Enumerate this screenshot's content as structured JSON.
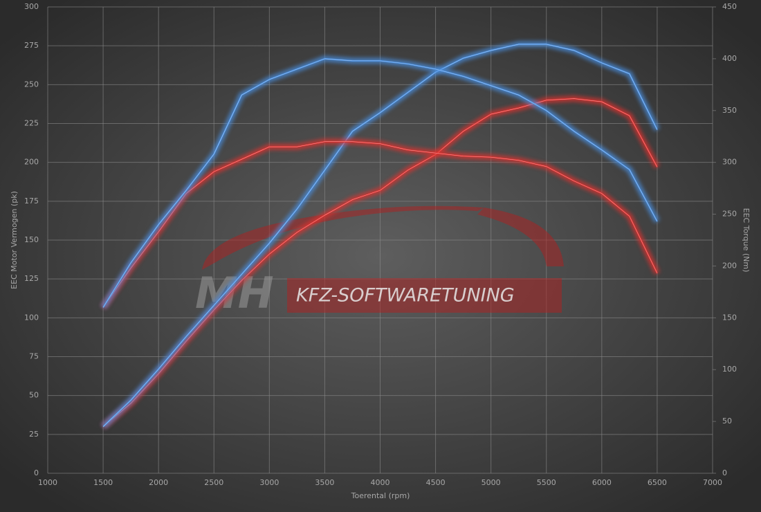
{
  "chart_data": {
    "type": "line",
    "xlabel": "Toerental (rpm)",
    "ylabel": "EEC Motor Vermogen (pk)",
    "y2label": "EEC Torque (Nm)",
    "watermark": {
      "left": "MH",
      "right": "KFZ-SOFTWARETUNING"
    },
    "x": [
      1500,
      1750,
      2000,
      2250,
      2500,
      2750,
      3000,
      3250,
      3500,
      3750,
      4000,
      4250,
      4500,
      4750,
      5000,
      5250,
      5500,
      5750,
      6000,
      6250,
      6500
    ],
    "series": [
      {
        "color": "#e0302e",
        "values": [
          30,
          45,
          64,
          85,
          105,
          124,
          141,
          155,
          166,
          176,
          182,
          195,
          205,
          220,
          231,
          235,
          240,
          241,
          239,
          230,
          197
        ]
      },
      {
        "color": "#4a90e2",
        "values": [
          30,
          47,
          67,
          88,
          108,
          128,
          148,
          170,
          195,
          220,
          232,
          245,
          258,
          267,
          272,
          276,
          276,
          272,
          264,
          257,
          221
        ]
      },
      {
        "color": "#e0302e",
        "axis": "y2",
        "values": [
          160,
          198,
          233,
          270,
          291,
          303,
          315,
          315,
          320,
          320,
          318,
          312,
          309,
          306,
          305,
          302,
          296,
          282,
          270,
          248,
          193
        ]
      },
      {
        "color": "#4a90e2",
        "axis": "y2",
        "values": [
          160,
          203,
          240,
          273,
          308,
          365,
          380,
          390,
          400,
          398,
          398,
          395,
          390,
          383,
          374,
          365,
          350,
          330,
          312,
          293,
          243
        ]
      }
    ],
    "xlim": [
      1000,
      7000
    ],
    "xticks": [
      1000,
      1500,
      2000,
      2500,
      3000,
      3500,
      4000,
      4500,
      5000,
      5500,
      6000,
      6500,
      7000
    ],
    "ylim": [
      0,
      300
    ],
    "yticks": [
      0,
      25,
      50,
      75,
      100,
      125,
      150,
      175,
      200,
      225,
      250,
      275,
      300
    ],
    "y2lim": [
      0,
      450
    ],
    "y2ticks": [
      0,
      50,
      100,
      150,
      200,
      250,
      300,
      350,
      400,
      450
    ],
    "grid": true
  }
}
